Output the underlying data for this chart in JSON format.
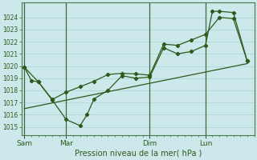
{
  "xlabel": "Pression niveau de la mer( hPa )",
  "bg_color": "#cce8ea",
  "grid_color": "#b0d8dc",
  "line_color": "#2d5a1b",
  "ylim": [
    1014.3,
    1025.2
  ],
  "yticks": [
    1015,
    1016,
    1017,
    1018,
    1019,
    1020,
    1021,
    1022,
    1023,
    1024
  ],
  "day_labels": [
    "Sam",
    "Mar",
    "Dim",
    "Lun"
  ],
  "day_positions": [
    0,
    3,
    9,
    13
  ],
  "xlim": [
    -0.2,
    16.5
  ],
  "series1_x": [
    0,
    0.5,
    1,
    2,
    3,
    4,
    4.5,
    5,
    6,
    7,
    8,
    9,
    10,
    11,
    12,
    13,
    13.5,
    14,
    15,
    16
  ],
  "series1_y": [
    1019.9,
    1018.8,
    1018.7,
    1017.2,
    1015.6,
    1015.1,
    1016.0,
    1017.3,
    1018.0,
    1019.2,
    1019.0,
    1019.1,
    1021.5,
    1021.0,
    1021.2,
    1021.7,
    1024.5,
    1024.5,
    1024.4,
    1020.4
  ],
  "series2_x": [
    0,
    1,
    2,
    3,
    4,
    5,
    6,
    7,
    8,
    9,
    10,
    11,
    12,
    13,
    14,
    15,
    16
  ],
  "series2_y": [
    1019.9,
    1018.7,
    1017.25,
    1017.85,
    1018.3,
    1018.75,
    1019.3,
    1019.4,
    1019.35,
    1019.25,
    1021.8,
    1021.7,
    1022.15,
    1022.6,
    1024.0,
    1023.9,
    1020.4
  ],
  "trend_x": [
    0,
    16
  ],
  "trend_y": [
    1016.5,
    1020.2
  ]
}
